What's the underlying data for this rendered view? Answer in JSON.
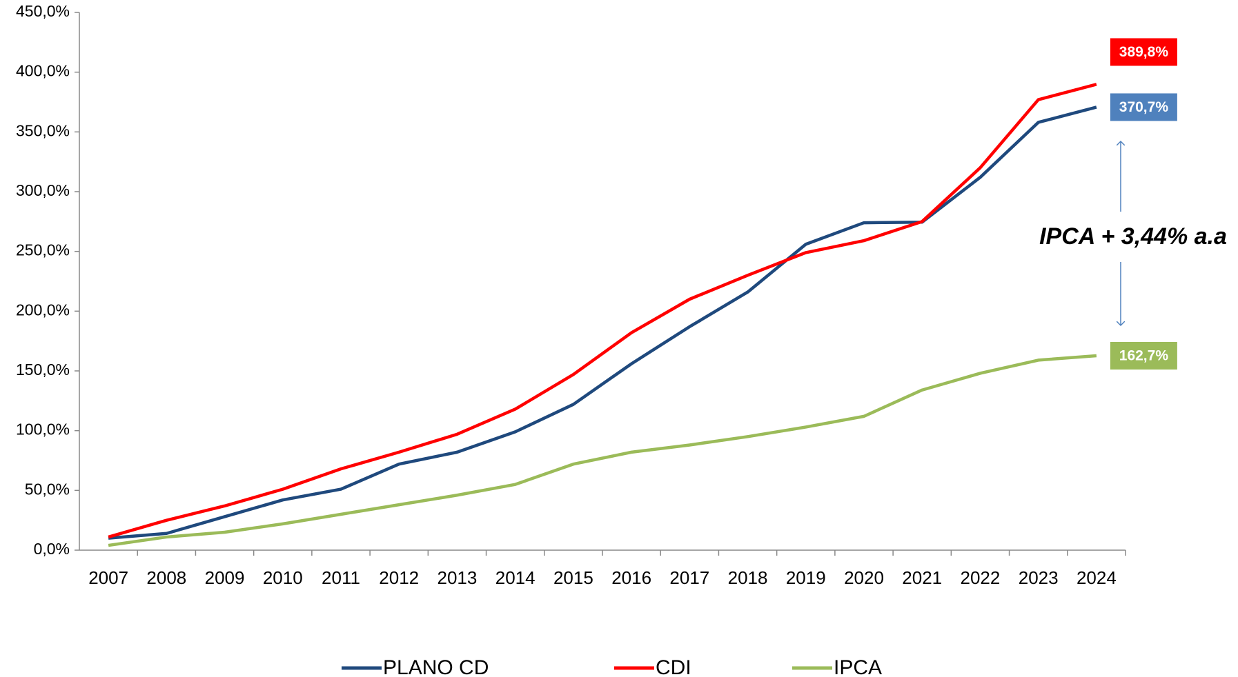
{
  "chart_data": {
    "type": "line",
    "categories": [
      "2007",
      "2008",
      "2009",
      "2010",
      "2011",
      "2012",
      "2013",
      "2014",
      "2015",
      "2016",
      "2017",
      "2018",
      "2019",
      "2020",
      "2021",
      "2022",
      "2023",
      "2024"
    ],
    "series": [
      {
        "name": "PLANO CD",
        "color": "#1f497d",
        "values": [
          10,
          14,
          28,
          42,
          51,
          72,
          82,
          99,
          122,
          156,
          187,
          216,
          256,
          274,
          274.5,
          312,
          358,
          370.7
        ],
        "value_labels": [
          null,
          null,
          null,
          null,
          null,
          null,
          null,
          null,
          null,
          null,
          null,
          null,
          null,
          null,
          null,
          null,
          null,
          "370,7%"
        ],
        "label_color": "#4f81bd"
      },
      {
        "name": "CDI",
        "color": "#ff0000",
        "values": [
          11,
          25,
          37,
          51,
          68,
          82,
          97,
          118,
          147,
          182,
          210,
          230,
          249,
          259,
          275,
          320,
          377,
          389.8
        ],
        "value_labels": [
          null,
          null,
          null,
          null,
          null,
          null,
          null,
          null,
          null,
          null,
          null,
          null,
          null,
          null,
          null,
          null,
          null,
          "389,8%"
        ],
        "label_color": "#ff0000"
      },
      {
        "name": "IPCA",
        "color": "#9bbb59",
        "values": [
          4,
          11,
          15,
          22,
          30,
          38,
          46,
          55,
          72,
          82,
          88,
          95,
          103,
          112,
          134,
          148,
          159,
          162.7
        ],
        "value_labels": [
          null,
          null,
          null,
          null,
          null,
          null,
          null,
          null,
          null,
          null,
          null,
          null,
          null,
          null,
          null,
          null,
          null,
          "162,7%"
        ],
        "label_color": "#9bbb59"
      }
    ],
    "ylim": [
      0,
      450
    ],
    "yticks": [
      {
        "value": 0,
        "label": "0,0%"
      },
      {
        "value": 50,
        "label": "50,0%"
      },
      {
        "value": 100,
        "label": "100,0%"
      },
      {
        "value": 150,
        "label": "150,0%"
      },
      {
        "value": 200,
        "label": "200,0%"
      },
      {
        "value": 250,
        "label": "250,0%"
      },
      {
        "value": 300,
        "label": "300,0%"
      },
      {
        "value": 350,
        "label": "350,0%"
      },
      {
        "value": 400,
        "label": "400,0%"
      },
      {
        "value": 450,
        "label": "450,0%"
      }
    ],
    "annotation": "IPCA + 3,44% a.a",
    "legend": "bottom"
  }
}
